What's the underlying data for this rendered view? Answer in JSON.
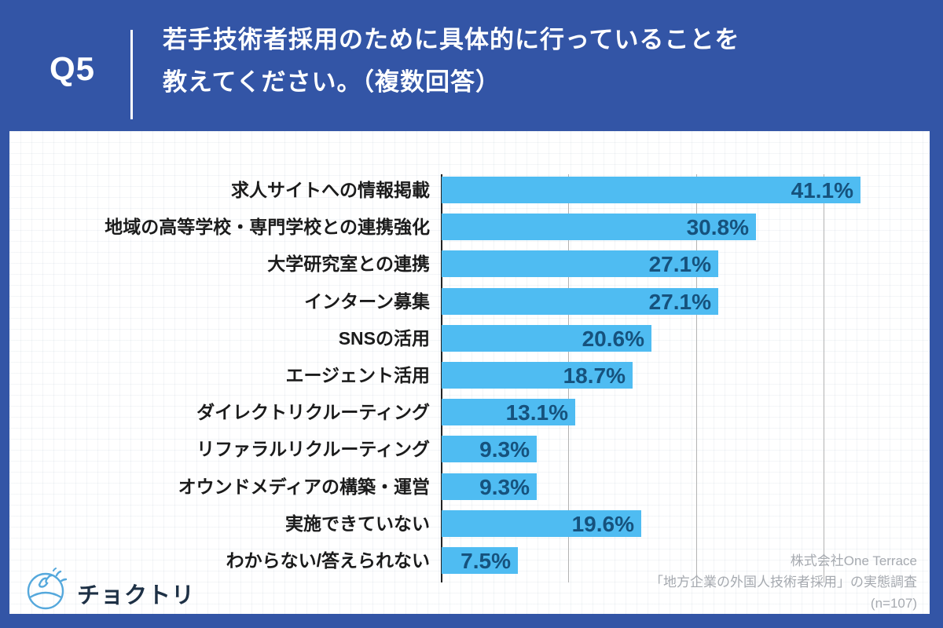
{
  "header": {
    "question_no": "Q5",
    "title_line1": "若手技術者採用のために具体的に行っていることを",
    "title_line2": "教えてください。（複数回答）"
  },
  "chart_data": {
    "type": "bar",
    "orientation": "horizontal",
    "categories": [
      "求人サイトへの情報掲載",
      "地域の高等学校・専門学校との連携強化",
      "大学研究室との連携",
      "インターン募集",
      "SNSの活用",
      "エージェント活用",
      "ダイレクトリクルーティング",
      "リファラルリクルーティング",
      "オウンドメディアの構築・運営",
      "実施できていない",
      "わからない/答えられない"
    ],
    "values": [
      41.1,
      30.8,
      27.1,
      27.1,
      20.6,
      18.7,
      13.1,
      9.3,
      9.3,
      19.6,
      7.5
    ],
    "value_suffix": "%",
    "title": "",
    "xlabel": "",
    "ylabel": "",
    "xlim": [
      0,
      50
    ],
    "gridlines_percent": [
      12.5,
      25,
      37.5
    ],
    "grid": "vertical-only",
    "legend": "none",
    "value_labels": "inside-bar-right",
    "bar_color": "#4fbcf2",
    "value_label_color": "#16527d"
  },
  "footer": {
    "logo_text": "チョクトリ",
    "source_line1": "株式会社One Terrace",
    "source_line2": "「地方企業の外国人技術者採用」の実態調査",
    "source_line3": "(n=107)"
  },
  "colors": {
    "background": "#3355a6",
    "panel": "#ffffff",
    "bar": "#4fbcf2",
    "value_text": "#16527d",
    "category_text": "#1b1b1b",
    "axis": "#222222",
    "gridline": "#b3b3b3",
    "source_text": "#a6aab0",
    "logo_text": "#1d3045",
    "logo_icon": "#55a8dc"
  }
}
